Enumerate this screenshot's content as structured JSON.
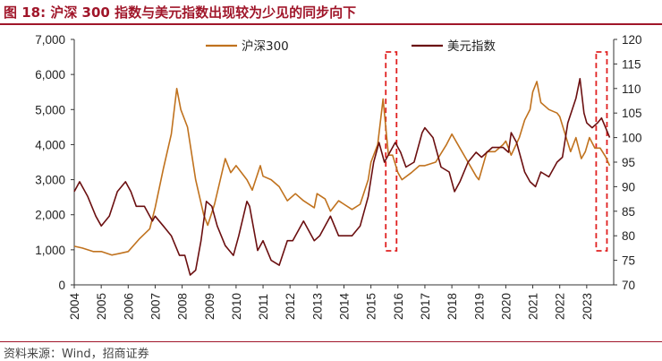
{
  "header": {
    "title": "图 18: 沪深 300 指数与美元指数出现较为少见的同步向下"
  },
  "footer": {
    "source": "资料来源：Wind，招商证券"
  },
  "colors": {
    "series1": "#c0721e",
    "series2": "#6b0f10",
    "highlight": "#e02020",
    "title": "#a0162a"
  },
  "chart_data": {
    "type": "line",
    "title": "沪深 300 指数与美元指数出现较为少见的同步向下",
    "xlabel": "",
    "ylabel_left": "",
    "ylabel_right": "",
    "x_ticks": [
      "2004",
      "2005",
      "2006",
      "2007",
      "2008",
      "2009",
      "2010",
      "2011",
      "2012",
      "2013",
      "2014",
      "2015",
      "2016",
      "2017",
      "2018",
      "2019",
      "2020",
      "2021",
      "2022",
      "2023"
    ],
    "xlim": [
      2004.0,
      2024.0
    ],
    "ylim_left": [
      0,
      7000
    ],
    "ylim_right": [
      70,
      120
    ],
    "left_ticks": [
      "0",
      "1,000",
      "2,000",
      "3,000",
      "4,000",
      "5,000",
      "6,000",
      "7,000"
    ],
    "right_ticks": [
      "70",
      "75",
      "80",
      "85",
      "90",
      "95",
      "100",
      "105",
      "110",
      "115",
      "120"
    ],
    "legend": [
      "沪深300",
      "美元指数"
    ],
    "legend_position": "top",
    "highlight_ranges": [
      [
        2015.55,
        2015.95
      ],
      [
        2023.35,
        2023.75
      ]
    ],
    "series": [
      {
        "name": "沪深300",
        "axis": "left",
        "points": [
          [
            2004.0,
            1100
          ],
          [
            2004.3,
            1050
          ],
          [
            2004.7,
            950
          ],
          [
            2005.0,
            950
          ],
          [
            2005.4,
            850
          ],
          [
            2005.7,
            900
          ],
          [
            2006.0,
            950
          ],
          [
            2006.4,
            1300
          ],
          [
            2006.8,
            1600
          ],
          [
            2007.0,
            2200
          ],
          [
            2007.3,
            3300
          ],
          [
            2007.6,
            4300
          ],
          [
            2007.8,
            5600
          ],
          [
            2007.95,
            5000
          ],
          [
            2008.2,
            4500
          ],
          [
            2008.5,
            3000
          ],
          [
            2008.8,
            2000
          ],
          [
            2008.95,
            1700
          ],
          [
            2009.2,
            2300
          ],
          [
            2009.6,
            3600
          ],
          [
            2009.8,
            3200
          ],
          [
            2010.0,
            3400
          ],
          [
            2010.4,
            3000
          ],
          [
            2010.6,
            2700
          ],
          [
            2010.9,
            3400
          ],
          [
            2011.0,
            3100
          ],
          [
            2011.3,
            3000
          ],
          [
            2011.6,
            2800
          ],
          [
            2011.9,
            2400
          ],
          [
            2012.2,
            2600
          ],
          [
            2012.5,
            2400
          ],
          [
            2012.9,
            2200
          ],
          [
            2013.0,
            2600
          ],
          [
            2013.3,
            2450
          ],
          [
            2013.5,
            2100
          ],
          [
            2013.8,
            2400
          ],
          [
            2014.0,
            2300
          ],
          [
            2014.3,
            2150
          ],
          [
            2014.6,
            2300
          ],
          [
            2014.9,
            3000
          ],
          [
            2015.0,
            3500
          ],
          [
            2015.25,
            4000
          ],
          [
            2015.45,
            5300
          ],
          [
            2015.55,
            4500
          ],
          [
            2015.65,
            3700
          ],
          [
            2015.8,
            3700
          ],
          [
            2016.0,
            3200
          ],
          [
            2016.15,
            3000
          ],
          [
            2016.5,
            3200
          ],
          [
            2016.8,
            3400
          ],
          [
            2017.0,
            3400
          ],
          [
            2017.4,
            3500
          ],
          [
            2017.8,
            4000
          ],
          [
            2018.0,
            4300
          ],
          [
            2018.3,
            3900
          ],
          [
            2018.6,
            3500
          ],
          [
            2018.9,
            3100
          ],
          [
            2019.0,
            3000
          ],
          [
            2019.3,
            3800
          ],
          [
            2019.6,
            3800
          ],
          [
            2019.9,
            4000
          ],
          [
            2020.0,
            4100
          ],
          [
            2020.2,
            3700
          ],
          [
            2020.5,
            4200
          ],
          [
            2020.7,
            4700
          ],
          [
            2020.9,
            5000
          ],
          [
            2021.0,
            5500
          ],
          [
            2021.15,
            5800
          ],
          [
            2021.3,
            5200
          ],
          [
            2021.6,
            5000
          ],
          [
            2021.9,
            4900
          ],
          [
            2022.0,
            4800
          ],
          [
            2022.2,
            4300
          ],
          [
            2022.4,
            3800
          ],
          [
            2022.6,
            4200
          ],
          [
            2022.8,
            3600
          ],
          [
            2022.95,
            3800
          ],
          [
            2023.1,
            4200
          ],
          [
            2023.3,
            3900
          ],
          [
            2023.5,
            3900
          ],
          [
            2023.7,
            3650
          ],
          [
            2023.85,
            3400
          ]
        ]
      },
      {
        "name": "美元指数",
        "axis": "right",
        "points": [
          [
            2004.0,
            89
          ],
          [
            2004.2,
            91
          ],
          [
            2004.5,
            88
          ],
          [
            2004.8,
            84
          ],
          [
            2005.0,
            82
          ],
          [
            2005.3,
            84
          ],
          [
            2005.6,
            89
          ],
          [
            2005.9,
            91
          ],
          [
            2006.1,
            89
          ],
          [
            2006.3,
            86
          ],
          [
            2006.6,
            86
          ],
          [
            2006.9,
            83
          ],
          [
            2007.0,
            84
          ],
          [
            2007.3,
            82
          ],
          [
            2007.6,
            80
          ],
          [
            2007.9,
            76
          ],
          [
            2008.1,
            76
          ],
          [
            2008.3,
            72
          ],
          [
            2008.5,
            73
          ],
          [
            2008.7,
            79
          ],
          [
            2008.9,
            87
          ],
          [
            2009.1,
            86
          ],
          [
            2009.3,
            82
          ],
          [
            2009.6,
            78
          ],
          [
            2009.9,
            76
          ],
          [
            2010.1,
            80
          ],
          [
            2010.4,
            87
          ],
          [
            2010.5,
            86
          ],
          [
            2010.8,
            77
          ],
          [
            2011.0,
            79
          ],
          [
            2011.3,
            75
          ],
          [
            2011.6,
            74
          ],
          [
            2011.9,
            79
          ],
          [
            2012.1,
            79
          ],
          [
            2012.5,
            83
          ],
          [
            2012.9,
            79
          ],
          [
            2013.1,
            80
          ],
          [
            2013.5,
            84
          ],
          [
            2013.8,
            80
          ],
          [
            2014.0,
            80
          ],
          [
            2014.3,
            80
          ],
          [
            2014.6,
            82
          ],
          [
            2014.9,
            88
          ],
          [
            2015.1,
            95
          ],
          [
            2015.3,
            99
          ],
          [
            2015.5,
            95
          ],
          [
            2015.7,
            97
          ],
          [
            2015.9,
            99
          ],
          [
            2016.1,
            97
          ],
          [
            2016.3,
            94
          ],
          [
            2016.6,
            95
          ],
          [
            2016.9,
            101
          ],
          [
            2017.0,
            102
          ],
          [
            2017.3,
            100
          ],
          [
            2017.6,
            94
          ],
          [
            2017.9,
            93
          ],
          [
            2018.1,
            89
          ],
          [
            2018.3,
            91
          ],
          [
            2018.6,
            95
          ],
          [
            2018.9,
            97
          ],
          [
            2019.1,
            96
          ],
          [
            2019.5,
            98
          ],
          [
            2019.9,
            98
          ],
          [
            2020.1,
            97
          ],
          [
            2020.2,
            101
          ],
          [
            2020.4,
            99
          ],
          [
            2020.7,
            93
          ],
          [
            2020.9,
            91
          ],
          [
            2021.1,
            90
          ],
          [
            2021.3,
            93
          ],
          [
            2021.6,
            92
          ],
          [
            2021.9,
            95
          ],
          [
            2022.1,
            96
          ],
          [
            2022.3,
            103
          ],
          [
            2022.6,
            108
          ],
          [
            2022.75,
            112
          ],
          [
            2022.9,
            105
          ],
          [
            2023.0,
            103
          ],
          [
            2023.2,
            102
          ],
          [
            2023.4,
            103
          ],
          [
            2023.55,
            104
          ],
          [
            2023.7,
            102
          ],
          [
            2023.85,
            100
          ]
        ]
      }
    ]
  }
}
